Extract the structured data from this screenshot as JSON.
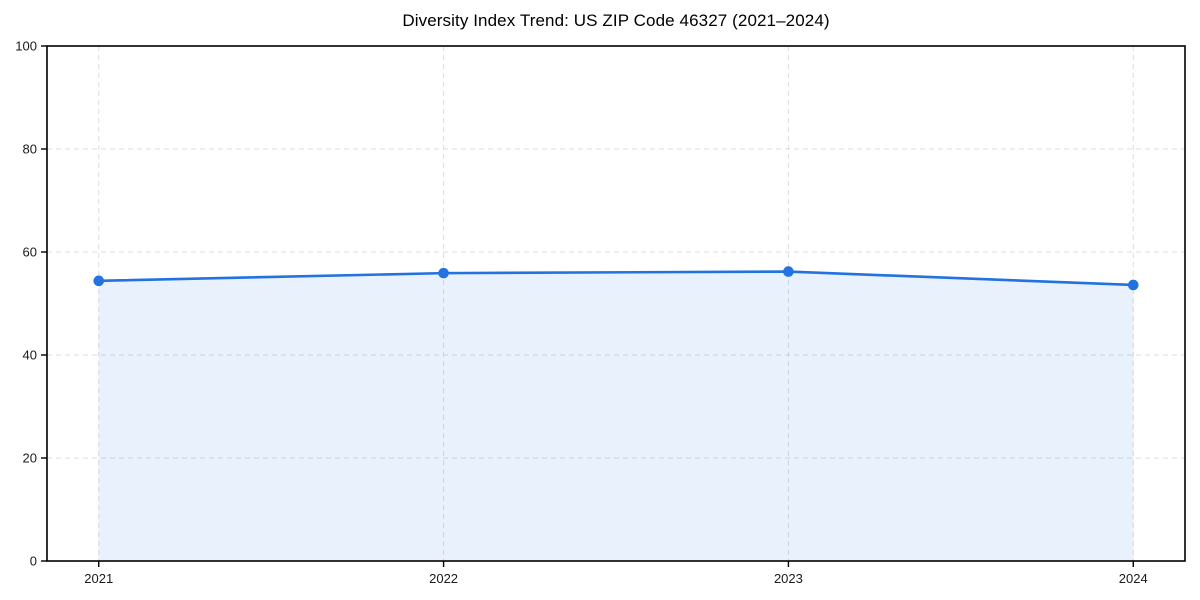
{
  "page": {
    "background": "#ffffff"
  },
  "chart_data": {
    "type": "area",
    "title": "Diversity Index Trend: US ZIP Code 46327 (2021–2024)",
    "x": [
      2021,
      2022,
      2023,
      2024
    ],
    "xticklabels": [
      "2021",
      "2022",
      "2023",
      "2024"
    ],
    "values": [
      54.4,
      55.9,
      56.2,
      53.6
    ],
    "xlabel": "",
    "ylabel": "",
    "ylim": [
      0,
      100
    ],
    "yticks": [
      0,
      20,
      40,
      60,
      80,
      100
    ],
    "x_margin_fraction": 0.05,
    "grid": "dashed, horizontal and vertical at ticks, drawn below data",
    "legend": "none",
    "marker": "circle",
    "colors": {
      "line": "#2272e0",
      "fill": "#2272e0",
      "fill_opacity": 0.1,
      "grid": "#dddddd",
      "axis": "#000000",
      "tick_label": "#1a1a1a",
      "title": "#000000",
      "background": "#ffffff"
    }
  }
}
